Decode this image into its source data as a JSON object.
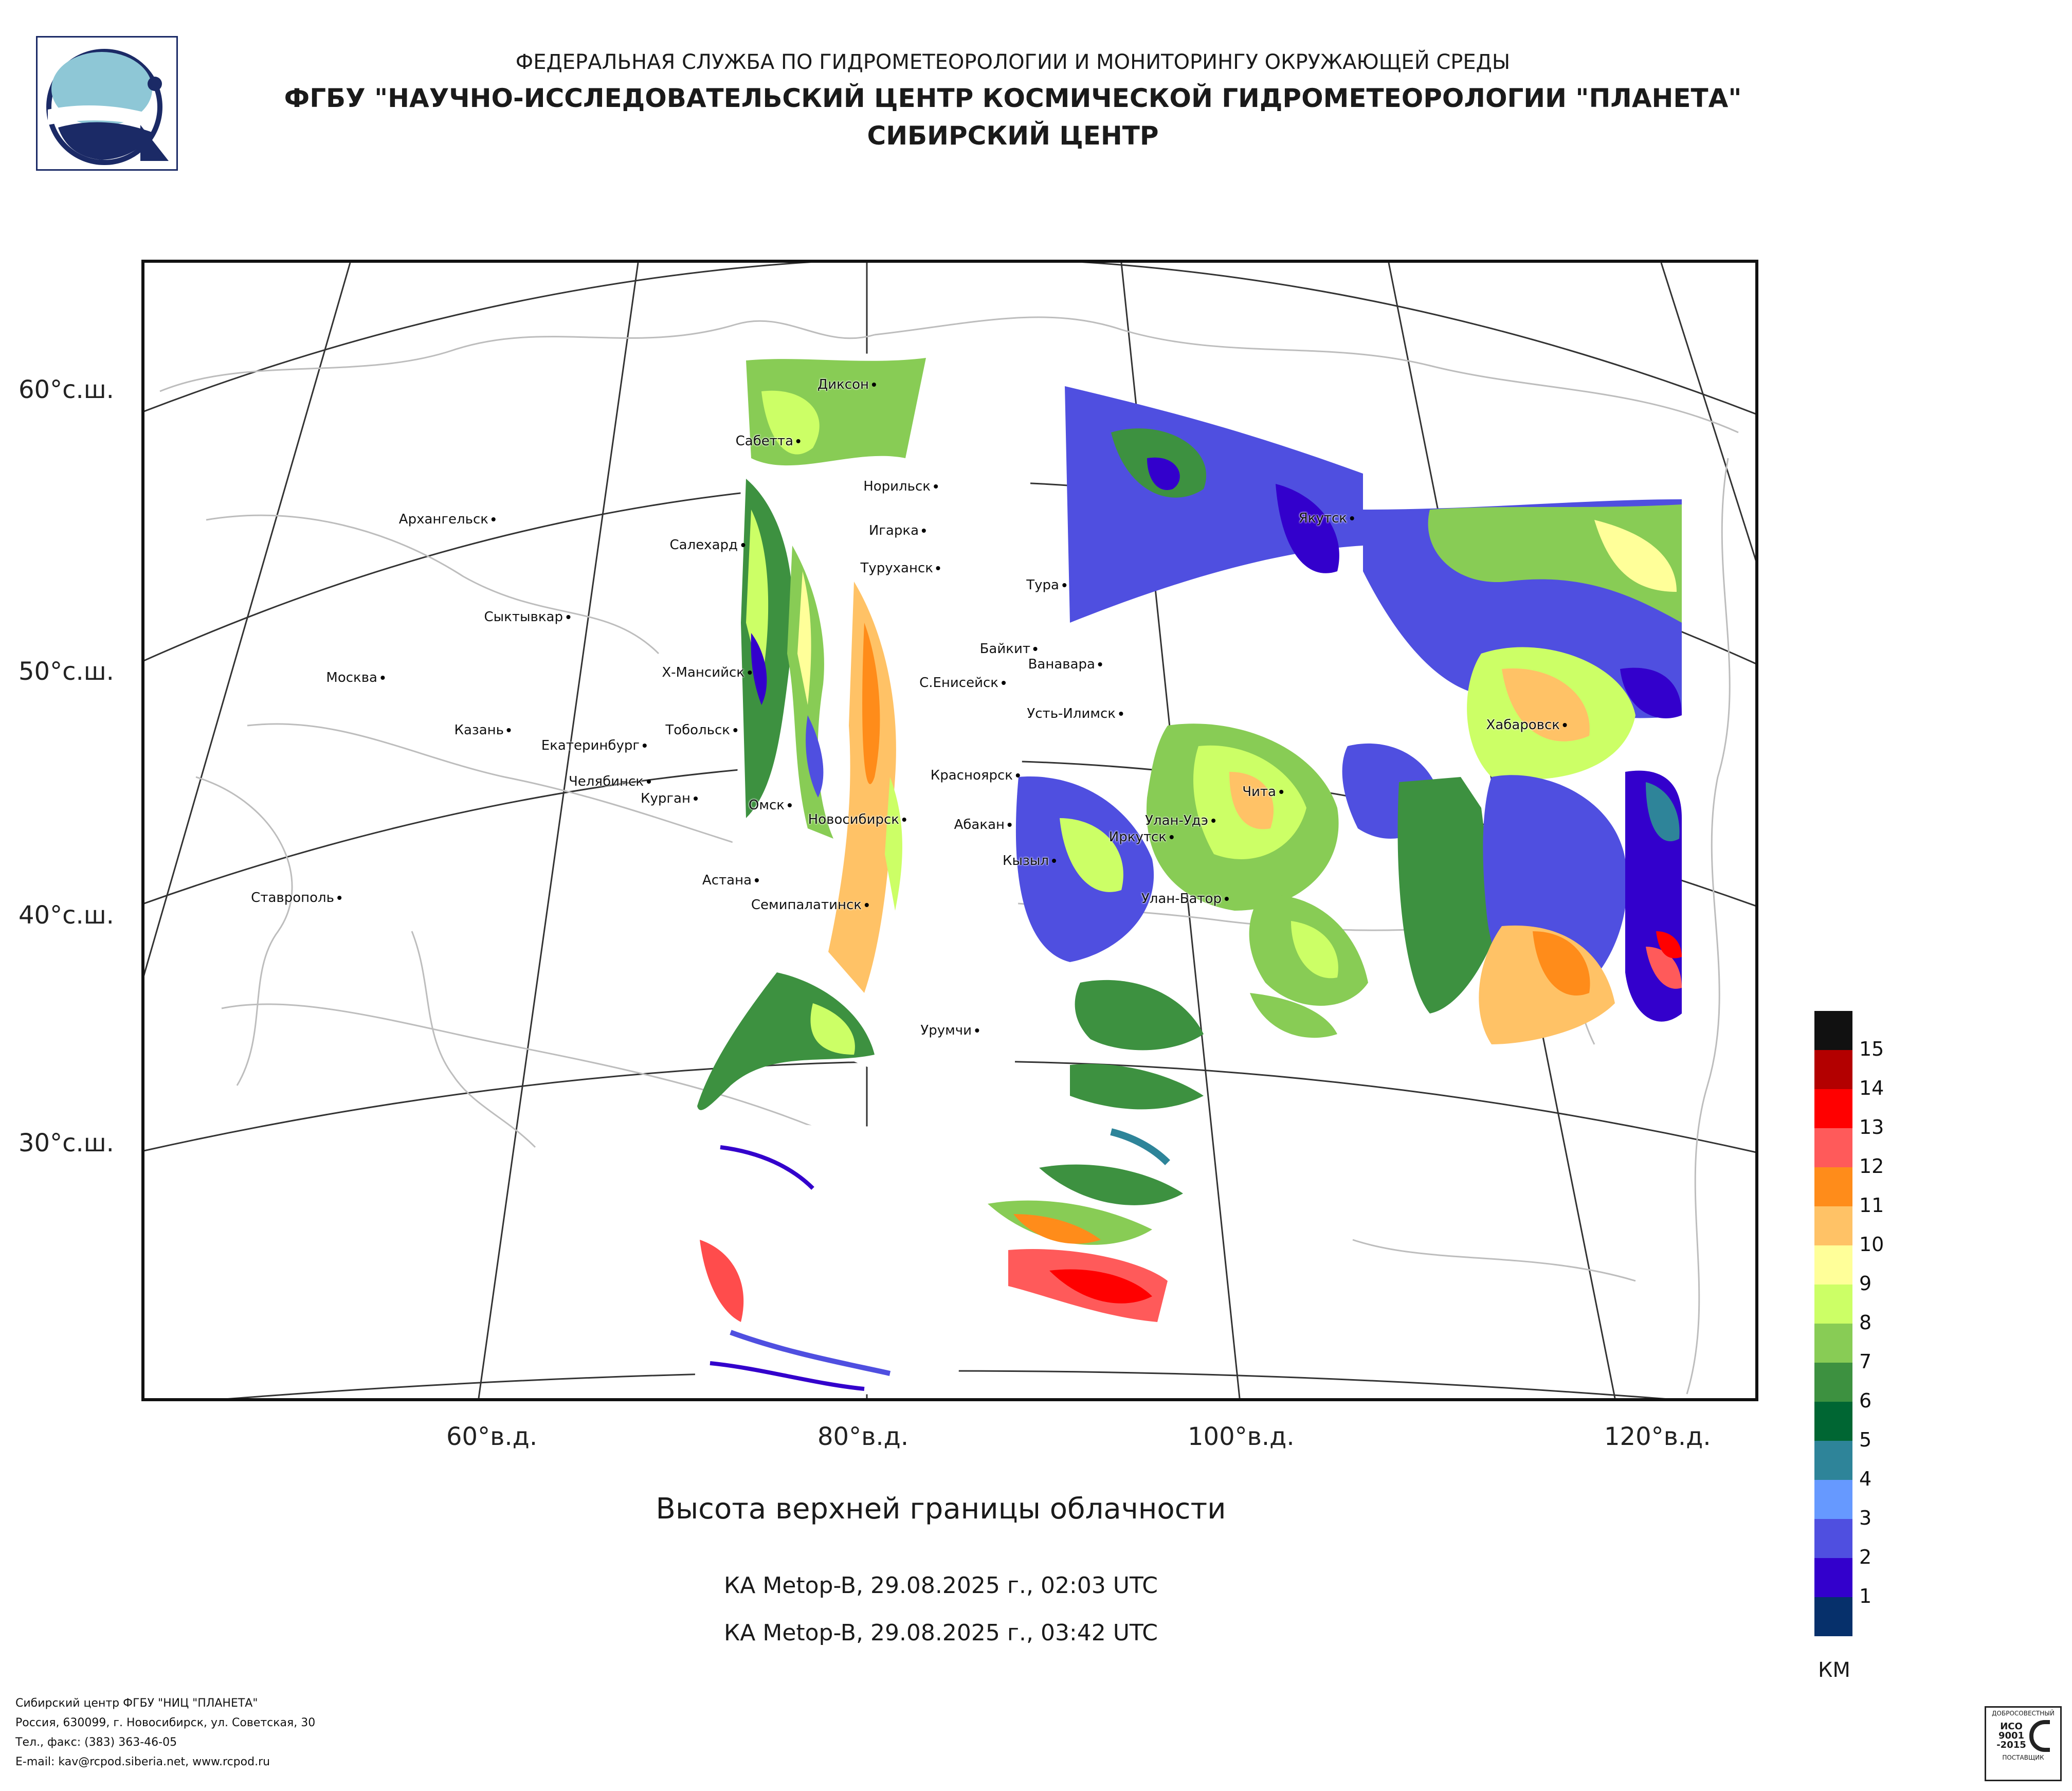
{
  "header": {
    "line1": "ФЕДЕРАЛЬНАЯ СЛУЖБА ПО ГИДРОМЕТЕОРОЛОГИИ И МОНИТОРИНГУ ОКРУЖАЮЩЕЙ СРЕДЫ",
    "line2": "ФГБУ \"НАУЧНО-ИССЛЕДОВАТЕЛЬСКИЙ ЦЕНТР КОСМИЧЕСКОЙ ГИДРОМЕТЕОРОЛОГИИ \"ПЛАНЕТА\"",
    "line3": "СИБИРСКИЙ ЦЕНТР"
  },
  "map": {
    "lat_labels": [
      "60°с.ш.",
      "50°с.ш.",
      "40°с.ш.",
      "30°с.ш."
    ],
    "lon_labels": [
      "60°в.д.",
      "80°в.д.",
      "100°в.д.",
      "120°в.д."
    ],
    "cities": [
      {
        "name": "Диксон"
      },
      {
        "name": "Сабетта"
      },
      {
        "name": "Норильск"
      },
      {
        "name": "Архангельск"
      },
      {
        "name": "Салехард"
      },
      {
        "name": "Игарка"
      },
      {
        "name": "Туруханск"
      },
      {
        "name": "Тура"
      },
      {
        "name": "Якутск"
      },
      {
        "name": "Сыктывкар"
      },
      {
        "name": "Байкит"
      },
      {
        "name": "Ванавара"
      },
      {
        "name": "Москва"
      },
      {
        "name": "Х-Мансийск"
      },
      {
        "name": "С.Енисейск"
      },
      {
        "name": "Усть-Илимск"
      },
      {
        "name": "Казань"
      },
      {
        "name": "Тобольск"
      },
      {
        "name": "Екатеринбург"
      },
      {
        "name": "Хабаровск"
      },
      {
        "name": "Челябинск"
      },
      {
        "name": "Курган"
      },
      {
        "name": "Красноярск"
      },
      {
        "name": "Чита"
      },
      {
        "name": "Омск"
      },
      {
        "name": "Новосибирск"
      },
      {
        "name": "Абакан"
      },
      {
        "name": "Улан-Удэ"
      },
      {
        "name": "Иркутск"
      },
      {
        "name": "Кызыл"
      },
      {
        "name": "Астана"
      },
      {
        "name": "Ставрополь"
      },
      {
        "name": "Улан-Батор"
      },
      {
        "name": "Семипалатинск"
      },
      {
        "name": "Урумчи"
      }
    ]
  },
  "title": "Высота верхней границы облачности",
  "passes": [
    "КА Metop-B, 29.08.2025 г., 02:03 UTC",
    "КА Metop-B, 29.08.2025 г., 03:42 UTC"
  ],
  "legend": {
    "unit": "КМ",
    "levels": [
      {
        "label": "15",
        "color": "#111111"
      },
      {
        "label": "14",
        "color": "#b30000"
      },
      {
        "label": "13",
        "color": "#ff0000"
      },
      {
        "label": "12",
        "color": "#ff5a5a"
      },
      {
        "label": "11",
        "color": "#ff8c1a"
      },
      {
        "label": "10",
        "color": "#ffc266"
      },
      {
        "label": "9",
        "color": "#ffff99"
      },
      {
        "label": "8",
        "color": "#ccff66"
      },
      {
        "label": "7",
        "color": "#88cc55"
      },
      {
        "label": "6",
        "color": "#3d9140"
      },
      {
        "label": "5",
        "color": "#006633"
      },
      {
        "label": "4",
        "color": "#2e8499"
      },
      {
        "label": "3",
        "color": "#6699ff"
      },
      {
        "label": "2",
        "color": "#4f4fe0"
      },
      {
        "label": "1",
        "color": "#3300cc"
      },
      {
        "label": "",
        "color": "#06306b"
      }
    ]
  },
  "footer": {
    "line1": "Сибирский центр ФГБУ \"НИЦ \"ПЛАНЕТА\"",
    "line2": "Россия, 630099, г. Новосибирск, ул. Советская, 30",
    "line3": "Тел., факс: (383) 363-46-05",
    "line4": "E-mail: kav@rcpod.siberia.net, www.rcpod.ru"
  },
  "cert_badge": {
    "top": "ДОБРОСОВЕСТНЫЙ",
    "mid1": "ИСО",
    "mid2": "9001",
    "mid3": "-2015",
    "bottom": "ПОСТАВЩИК"
  }
}
